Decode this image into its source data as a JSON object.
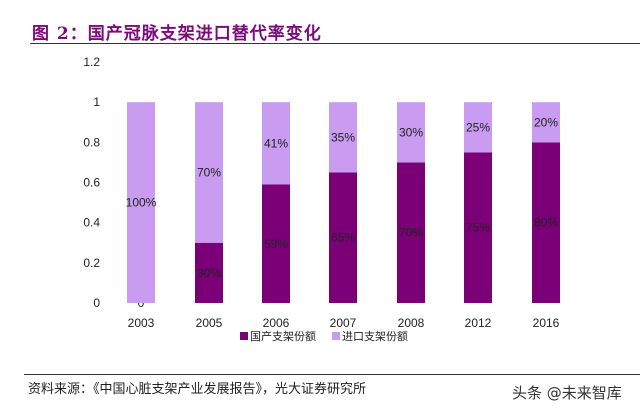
{
  "title": "图 2：国产冠脉支架进口替代率变化",
  "source": "资料来源：《中国心脏支架产业发展报告》，光大证券研究所",
  "watermark": "头条 @未来智库",
  "chart_data": {
    "type": "bar",
    "stacked": true,
    "categories": [
      "2003",
      "2005",
      "2006",
      "2007",
      "2008",
      "2012",
      "2016"
    ],
    "series": [
      {
        "name": "国产支架份额",
        "values": [
          0,
          0.3,
          0.59,
          0.65,
          0.7,
          0.75,
          0.8
        ],
        "labels": [
          "0",
          "30%",
          "59%",
          "65%",
          "70%",
          "75%",
          "80%"
        ],
        "color": "#7b0077"
      },
      {
        "name": "进口支架份额",
        "values": [
          1.0,
          0.7,
          0.41,
          0.35,
          0.3,
          0.25,
          0.2
        ],
        "labels": [
          "100%",
          "70%",
          "41%",
          "35%",
          "30%",
          "25%",
          "20%"
        ],
        "color": "#c99cf2"
      }
    ],
    "yticks": [
      "0",
      "0.2",
      "0.4",
      "0.6",
      "0.8",
      "1",
      "1.2"
    ],
    "ylim": [
      0,
      1.2
    ],
    "grid": false,
    "legend_position": "bottom"
  }
}
